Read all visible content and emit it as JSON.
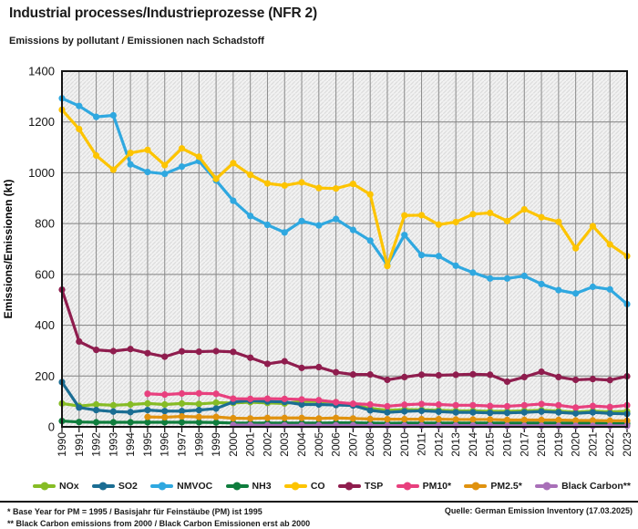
{
  "chart_data": {
    "type": "line",
    "title": "Industrial processes/Industrieprozesse (NFR 2)",
    "subtitle": "Emissions by pollutant / Emissionen nach Schadstoff",
    "ylabel": "Emissions/Emissionen (kt)",
    "ylim": [
      0,
      1400
    ],
    "ytick_step": 200,
    "grid": true,
    "hatched_background": true,
    "legend_position": "bottom",
    "x": [
      1990,
      1991,
      1992,
      1993,
      1994,
      1995,
      1996,
      1997,
      1998,
      1999,
      2000,
      2001,
      2002,
      2003,
      2004,
      2005,
      2006,
      2007,
      2008,
      2009,
      2010,
      2011,
      2012,
      2013,
      2014,
      2015,
      2016,
      2017,
      2018,
      2019,
      2020,
      2021,
      2022,
      2023
    ],
    "series": [
      {
        "name": "NOx",
        "color": "#86bc25",
        "values": [
          92,
          82,
          88,
          85,
          88,
          92,
          88,
          92,
          90,
          95,
          94,
          97,
          94,
          92,
          100,
          100,
          97,
          85,
          73,
          65,
          68,
          67,
          65,
          63,
          63,
          61,
          61,
          63,
          65,
          62,
          58,
          62,
          59,
          61
        ]
      },
      {
        "name": "SO2",
        "color": "#1b6d93",
        "values": [
          176,
          76,
          66,
          60,
          58,
          66,
          62,
          62,
          66,
          72,
          98,
          103,
          100,
          98,
          88,
          88,
          86,
          84,
          65,
          57,
          61,
          63,
          60,
          57,
          57,
          55,
          55,
          57,
          60,
          57,
          53,
          57,
          53,
          51
        ]
      },
      {
        "name": "NMVOC",
        "color": "#2fa8e0",
        "values": [
          1293,
          1263,
          1220,
          1226,
          1033,
          1003,
          996,
          1024,
          1046,
          970,
          890,
          830,
          795,
          765,
          810,
          793,
          818,
          775,
          733,
          637,
          755,
          676,
          672,
          634,
          607,
          584,
          584,
          594,
          562,
          538,
          525,
          551,
          541,
          483
        ]
      },
      {
        "name": "NH3",
        "color": "#0f7d3d",
        "values": [
          23,
          19,
          18,
          18,
          18,
          18,
          18,
          18,
          18,
          17,
          15,
          15,
          15,
          15,
          15,
          15,
          16,
          16,
          15,
          14,
          15,
          15,
          15,
          15,
          15,
          15,
          15,
          15,
          15,
          15,
          14,
          14,
          13,
          13
        ]
      },
      {
        "name": "CO",
        "color": "#fdc400",
        "values": [
          1248,
          1172,
          1068,
          1012,
          1078,
          1090,
          1030,
          1096,
          1063,
          976,
          1038,
          992,
          958,
          950,
          962,
          940,
          938,
          956,
          915,
          633,
          832,
          833,
          796,
          806,
          837,
          842,
          810,
          856,
          825,
          807,
          703,
          790,
          718,
          672
        ]
      },
      {
        "name": "TSP",
        "color": "#8f1d4e",
        "values": [
          540,
          336,
          303,
          298,
          306,
          290,
          276,
          297,
          296,
          298,
          295,
          272,
          248,
          258,
          232,
          235,
          215,
          206,
          206,
          185,
          196,
          205,
          203,
          205,
          207,
          205,
          178,
          196,
          217,
          196,
          185,
          188,
          184,
          199
        ]
      },
      {
        "name": "PM10*",
        "color": "#e8407e",
        "values": [
          null,
          null,
          null,
          null,
          null,
          130,
          127,
          131,
          132,
          130,
          111,
          110,
          111,
          110,
          108,
          105,
          97,
          91,
          88,
          81,
          87,
          90,
          88,
          85,
          85,
          82,
          81,
          85,
          90,
          85,
          76,
          82,
          78,
          85
        ]
      },
      {
        "name": "PM2.5*",
        "color": "#e0920f",
        "values": [
          null,
          null,
          null,
          null,
          null,
          39,
          38,
          41,
          39,
          39,
          34,
          33,
          35,
          35,
          35,
          33,
          35,
          33,
          31,
          30,
          30,
          30,
          30,
          29,
          29,
          29,
          27,
          27,
          27,
          27,
          25,
          25,
          24,
          24
        ]
      },
      {
        "name": "Black Carbon**",
        "color": "#a86fb8",
        "values": [
          null,
          null,
          null,
          null,
          null,
          null,
          null,
          null,
          null,
          null,
          7,
          7,
          6,
          6,
          6,
          6,
          6,
          6,
          5,
          5,
          5,
          5,
          5,
          5,
          5,
          5,
          4,
          4,
          4,
          4,
          4,
          4,
          4,
          4
        ]
      }
    ]
  },
  "footer": {
    "note1": "* Base Year for PM = 1995 / Basisjahr für Feinstäube (PM) ist 1995",
    "note2": "** Black Carbon emissions  from 2000 / Black Carbon Emissionen erst ab 2000",
    "source": "Quelle: German Emission Inventory (17.03.2025)"
  }
}
